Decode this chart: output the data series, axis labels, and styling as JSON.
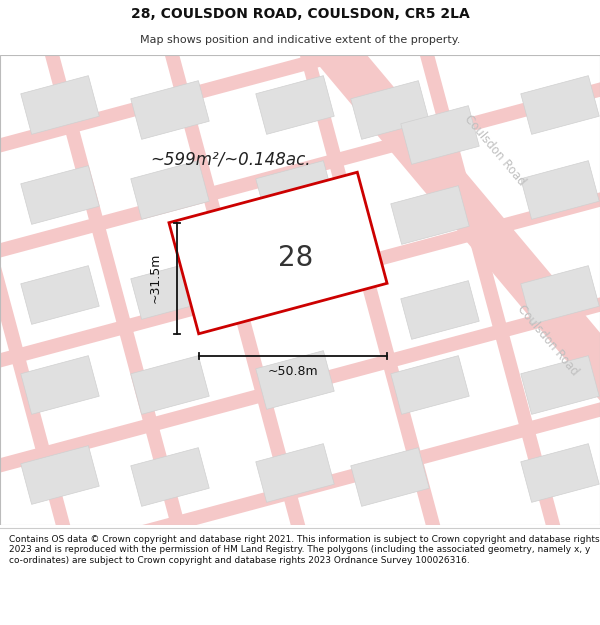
{
  "title": "28, COULSDON ROAD, COULSDON, CR5 2LA",
  "subtitle": "Map shows position and indicative extent of the property.",
  "footer": "Contains OS data © Crown copyright and database right 2021. This information is subject to Crown copyright and database rights 2023 and is reproduced with the permission of HM Land Registry. The polygons (including the associated geometry, namely x, y co-ordinates) are subject to Crown copyright and database rights 2023 Ordnance Survey 100026316.",
  "map_bg": "#f8f8f8",
  "street_color": "#f5c8c8",
  "block_fc": "#e0e0e0",
  "block_ec": "#d0d0d0",
  "plot_line_color": "#cc0000",
  "plot_fill_color": "#ffffff",
  "dim_line_color": "#111111",
  "road_label_color": "#c0c0c0",
  "area_text": "~599m²/~0.148ac.",
  "width_label": "~50.8m",
  "height_label": "~31.5m",
  "number_label": "28",
  "road_label": "Coulsdon Road",
  "title_fontsize": 10,
  "subtitle_fontsize": 8,
  "footer_fontsize": 6.5,
  "title_color": "#111111",
  "footer_color": "#111111"
}
